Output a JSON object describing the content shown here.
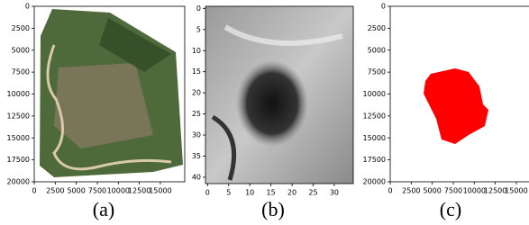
{
  "chart_data": [
    {
      "type": "image",
      "caption": "(a)",
      "xlim": [
        0,
        17900
      ],
      "ylim": [
        0,
        20000
      ],
      "y_inverted": true,
      "xticks": [
        0,
        2500,
        5000,
        7500,
        10000,
        12500,
        15000
      ],
      "yticks": [
        0,
        2500,
        5000,
        7500,
        10000,
        12500,
        15000,
        17500,
        20000
      ]
    },
    {
      "type": "image",
      "caption": "(b)",
      "xlim": [
        -0.5,
        34.5
      ],
      "ylim": [
        -0.5,
        41.5
      ],
      "y_inverted": true,
      "xticks": [
        0,
        5,
        10,
        15,
        20,
        25,
        30
      ],
      "yticks": [
        0,
        5,
        10,
        15,
        20,
        25,
        30,
        35,
        40
      ]
    },
    {
      "type": "image",
      "caption": "(c)",
      "xlim": [
        0,
        17900
      ],
      "ylim": [
        0,
        20000
      ],
      "y_inverted": true,
      "xticks": [
        0,
        2500,
        5000,
        7500,
        10000,
        12500,
        15000
      ],
      "yticks": [
        0,
        2500,
        5000,
        7500,
        10000,
        12500,
        15000,
        17500,
        20000
      ]
    }
  ]
}
